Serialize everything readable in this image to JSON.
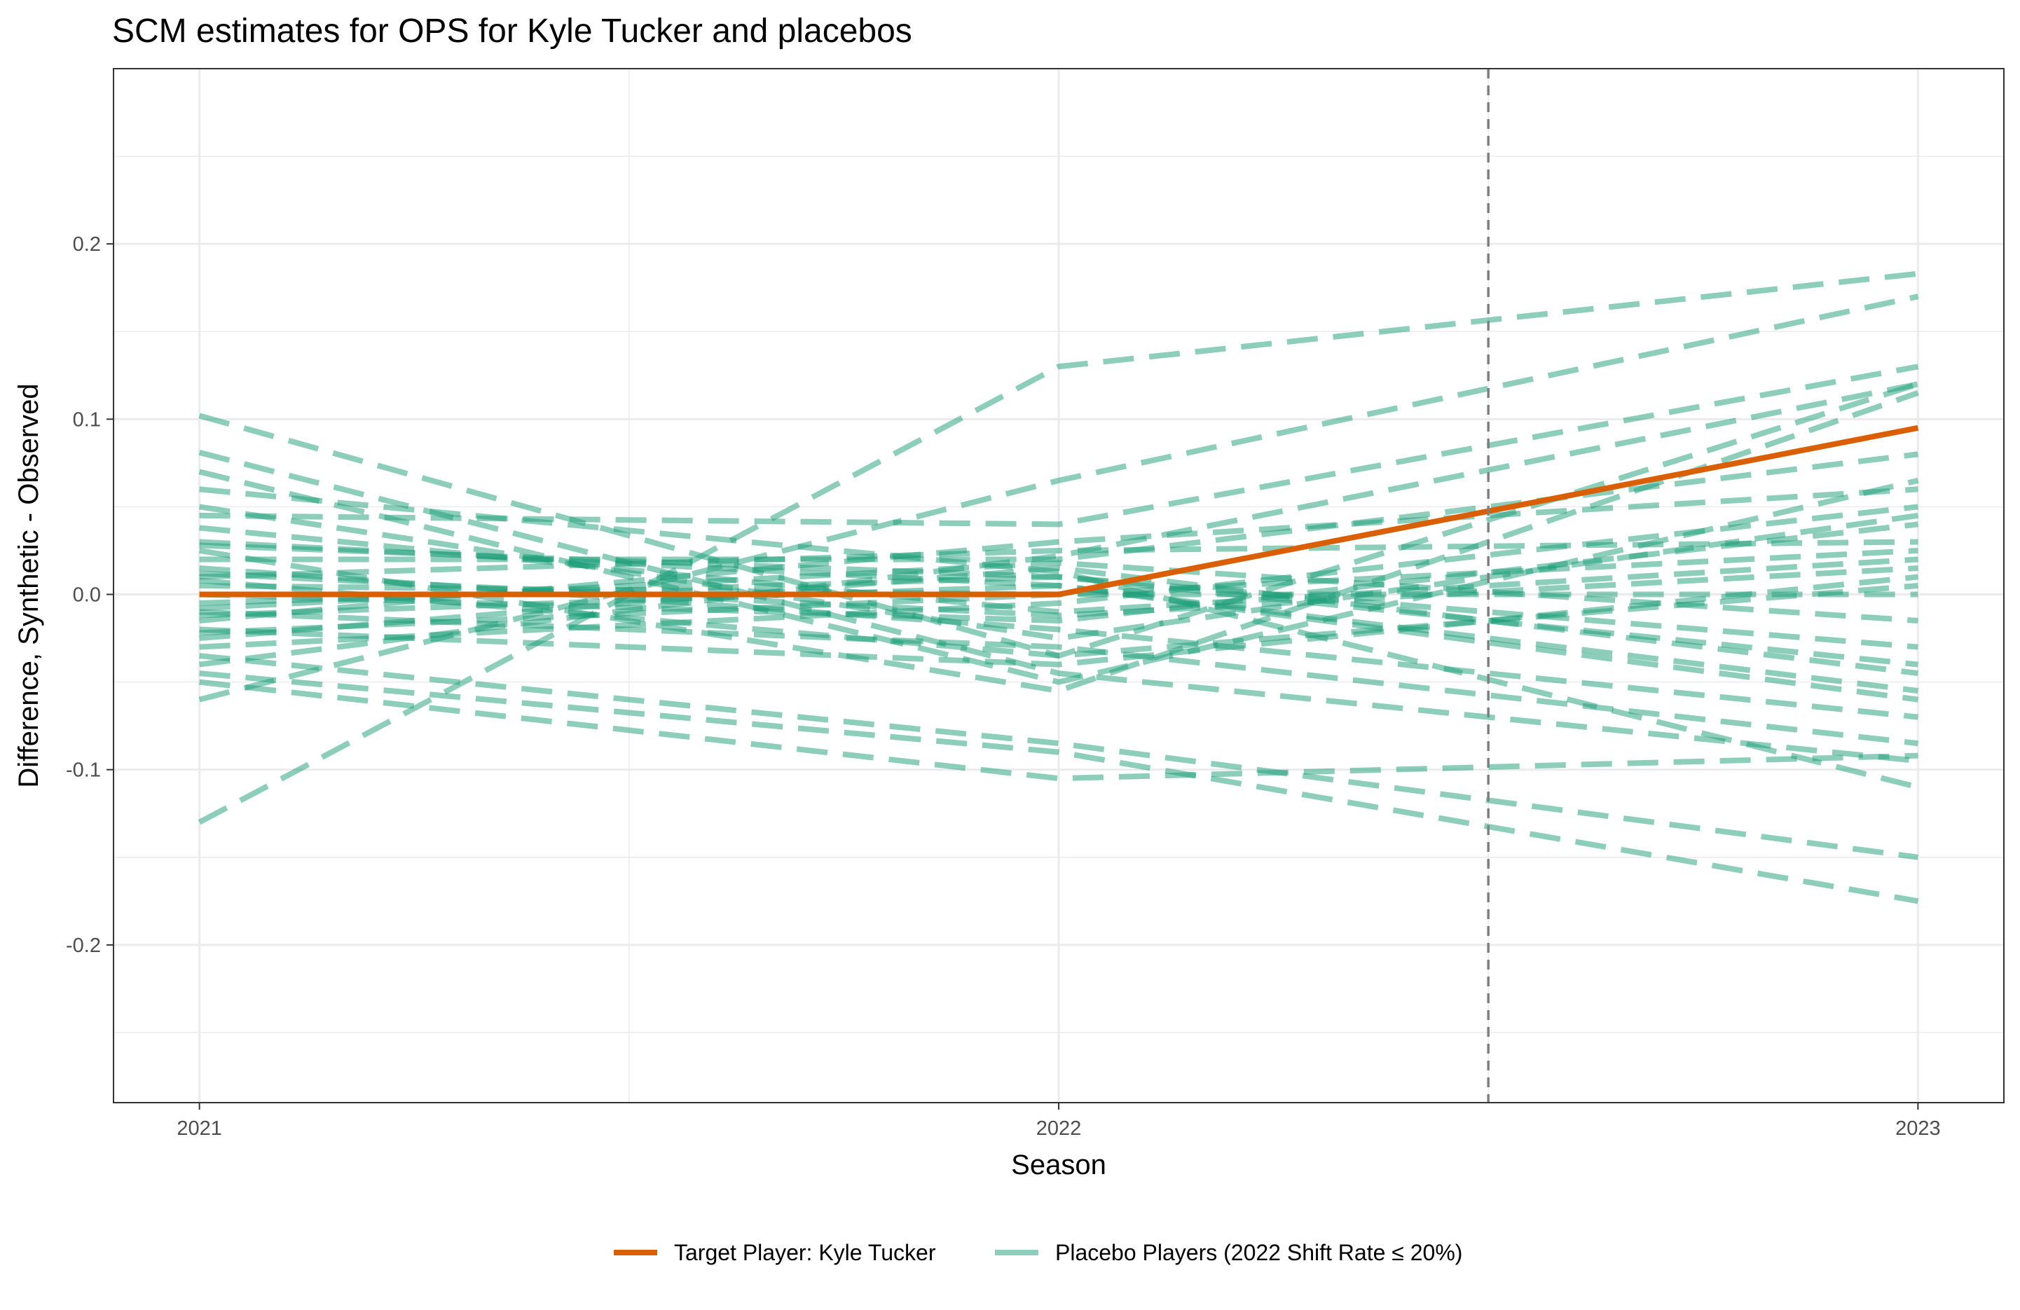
{
  "chart_data": {
    "type": "line",
    "title": "SCM estimates for OPS for Kyle Tucker and placebos",
    "xlabel": "Season",
    "ylabel": "Difference, Synthetic - Observed",
    "x": [
      2021,
      2022,
      2023
    ],
    "x_tick_labels": [
      "2021",
      "2022",
      "2023"
    ],
    "xlim": [
      2020.9,
      2023.1
    ],
    "ylim": [
      -0.29,
      0.3
    ],
    "y_ticks": [
      -0.2,
      -0.1,
      0.0,
      0.1,
      0.2
    ],
    "y_tick_labels": [
      "-0.2",
      "-0.1",
      "0.0",
      "0.1",
      "0.2"
    ],
    "grid": true,
    "reference_line": {
      "x": 2022.5,
      "style": "dashed",
      "color": "#7f7f7f"
    },
    "legend_position": "bottom",
    "colors": {
      "target": "#D95F02",
      "placebo": "#1B9E77",
      "reference": "#7f7f7f"
    },
    "target_series": {
      "name": "Target Player: Kyle Tucker",
      "values": [
        0.0,
        0.0,
        0.095
      ]
    },
    "placebo_legend_label": "Placebo Players (2022 Shift Rate ≤ 20%)",
    "placebo_series": [
      {
        "values": [
          0.102,
          -0.035,
          0.12
        ]
      },
      {
        "values": [
          0.081,
          -0.045,
          -0.095
        ]
      },
      {
        "values": [
          0.07,
          -0.05,
          0.065
        ]
      },
      {
        "values": [
          0.06,
          0.013,
          -0.11
        ]
      },
      {
        "values": [
          0.05,
          -0.025,
          0.045
        ]
      },
      {
        "values": [
          0.045,
          0.04,
          0.13
        ]
      },
      {
        "values": [
          0.038,
          -0.01,
          0.02
        ]
      },
      {
        "values": [
          0.03,
          0.005,
          -0.055
        ]
      },
      {
        "values": [
          0.025,
          -0.055,
          0.115
        ]
      },
      {
        "values": [
          0.02,
          0.02,
          0.08
        ]
      },
      {
        "values": [
          0.015,
          -0.02,
          -0.07
        ]
      },
      {
        "values": [
          0.01,
          0.025,
          0.03
        ]
      },
      {
        "values": [
          0.005,
          0.0,
          0.0
        ]
      },
      {
        "values": [
          0.0,
          -0.015,
          0.04
        ]
      },
      {
        "values": [
          -0.005,
          0.01,
          -0.03
        ]
      },
      {
        "values": [
          -0.01,
          -0.03,
          -0.085
        ]
      },
      {
        "values": [
          -0.015,
          0.03,
          0.06
        ]
      },
      {
        "values": [
          -0.02,
          -0.04,
          0.01
        ]
      },
      {
        "values": [
          -0.025,
          0.015,
          -0.045
        ]
      },
      {
        "values": [
          -0.03,
          -0.005,
          0.05
        ]
      },
      {
        "values": [
          -0.035,
          -0.085,
          -0.15
        ]
      },
      {
        "values": [
          -0.04,
          0.022,
          0.12
        ]
      },
      {
        "values": [
          -0.045,
          -0.09,
          -0.175
        ]
      },
      {
        "values": [
          -0.05,
          -0.105,
          -0.092
        ]
      },
      {
        "values": [
          -0.06,
          0.065,
          0.17
        ]
      },
      {
        "values": [
          -0.13,
          0.13,
          0.183
        ]
      },
      {
        "values": [
          -0.012,
          0.005,
          -0.06
        ]
      },
      {
        "values": [
          0.008,
          -0.035,
          0.005
        ]
      },
      {
        "values": [
          -0.022,
          0.0,
          0.025
        ]
      },
      {
        "values": [
          0.028,
          0.01,
          -0.04
        ]
      },
      {
        "values": [
          0.012,
          -0.012,
          0.015
        ]
      },
      {
        "values": [
          -0.008,
          0.018,
          -0.015
        ]
      }
    ]
  }
}
